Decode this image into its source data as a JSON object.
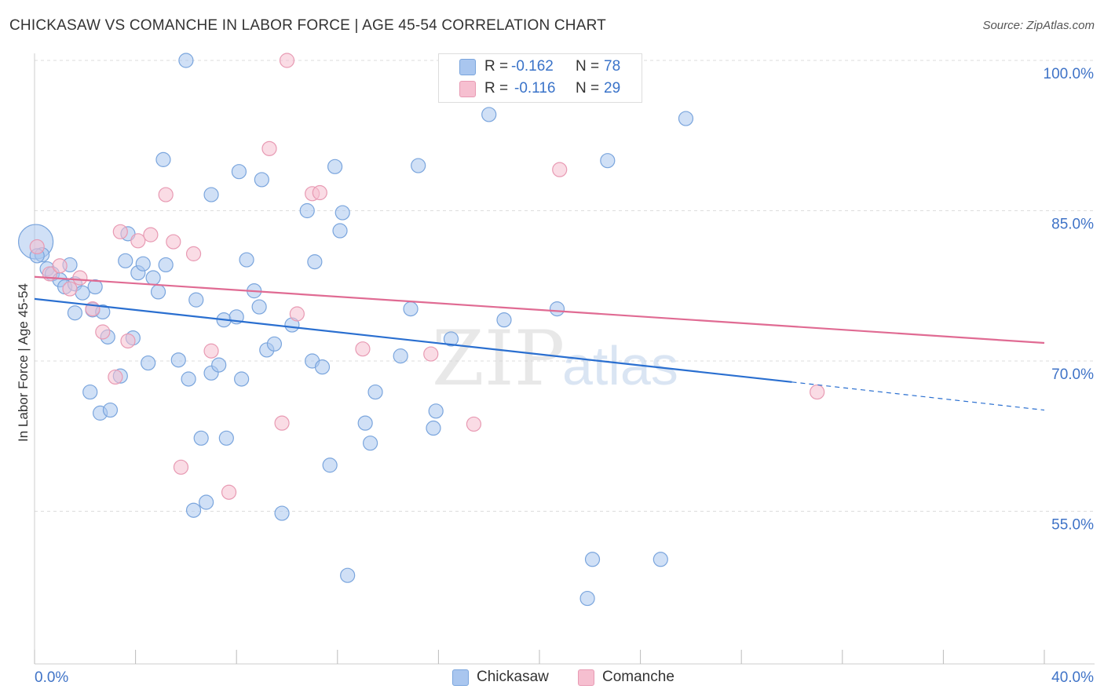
{
  "title": "CHICKASAW VS COMANCHE IN LABOR FORCE | AGE 45-54 CORRELATION CHART",
  "source": "Source: ZipAtlas.com",
  "watermark": {
    "zip": "ZIP",
    "atlas": "atlas"
  },
  "colors": {
    "blue_fill": "#a9c6ef",
    "blue_stroke": "#7aa5dd",
    "blue_line": "#2a6fd0",
    "pink_fill": "#f6bfd0",
    "pink_stroke": "#e89ab3",
    "pink_line": "#e06b93",
    "axis_text": "#3f73c7",
    "grid": "#dddddd"
  },
  "legend": [
    {
      "r_label": "R =",
      "r_value": "-0.162",
      "n_label": "N =",
      "n_value": "78"
    },
    {
      "r_label": "R =",
      "r_value": "-0.116",
      "n_label": "N =",
      "n_value": "29"
    }
  ],
  "chart_data": {
    "type": "scatter",
    "ylabel": "In Labor Force | Age 45-54",
    "xlim": [
      0,
      40
    ],
    "ylim": [
      40,
      100
    ],
    "x_tick_labels": [
      "0.0%",
      "40.0%"
    ],
    "y_tick_labels": [
      "100.0%",
      "85.0%",
      "70.0%",
      "55.0%"
    ],
    "y_tick_values": [
      100,
      85,
      70,
      55
    ],
    "y_label_offsets": [
      1.35,
      1.35,
      1.35,
      1.35
    ],
    "series": [
      {
        "name": "Chickasaw",
        "trend": {
          "x0": 0,
          "y0": 76.2,
          "x1": 30.0,
          "y1": 67.9,
          "dash_to_x": 40,
          "dash_to_y": 65.1
        },
        "points": [
          [
            0.05,
            81.9,
            "large"
          ],
          [
            0.3,
            80.6
          ],
          [
            0.5,
            79.2
          ],
          [
            0.7,
            78.7
          ],
          [
            1.0,
            78.1
          ],
          [
            1.2,
            77.4
          ],
          [
            1.4,
            79.6
          ],
          [
            1.6,
            77.7
          ],
          [
            1.9,
            76.8
          ],
          [
            1.6,
            74.8
          ],
          [
            2.3,
            75.1
          ],
          [
            2.7,
            74.9
          ],
          [
            2.9,
            72.4
          ],
          [
            3.4,
            68.5
          ],
          [
            2.2,
            66.9
          ],
          [
            2.6,
            64.8
          ],
          [
            3.0,
            65.1
          ],
          [
            3.7,
            82.7
          ],
          [
            3.6,
            80.0
          ],
          [
            4.1,
            78.8
          ],
          [
            4.3,
            79.7
          ],
          [
            4.7,
            78.3
          ],
          [
            4.5,
            69.8
          ],
          [
            3.9,
            72.3
          ],
          [
            4.9,
            76.9
          ],
          [
            5.2,
            79.6
          ],
          [
            5.1,
            90.1
          ],
          [
            5.7,
            70.1
          ],
          [
            6.0,
            100.0
          ],
          [
            6.1,
            68.2
          ],
          [
            6.4,
            76.1
          ],
          [
            6.6,
            62.3
          ],
          [
            6.8,
            55.9
          ],
          [
            6.3,
            55.1
          ],
          [
            7.0,
            86.6
          ],
          [
            7.0,
            68.8
          ],
          [
            7.3,
            69.6
          ],
          [
            7.5,
            74.1
          ],
          [
            7.6,
            62.3
          ],
          [
            8.0,
            74.4
          ],
          [
            8.1,
            88.9
          ],
          [
            8.2,
            68.2
          ],
          [
            8.4,
            80.1
          ],
          [
            8.7,
            77.0
          ],
          [
            8.9,
            75.4
          ],
          [
            9.0,
            88.1
          ],
          [
            9.2,
            71.1
          ],
          [
            9.5,
            71.7
          ],
          [
            9.8,
            54.8
          ],
          [
            10.2,
            73.6
          ],
          [
            10.8,
            85.0
          ],
          [
            11.0,
            70.0
          ],
          [
            11.1,
            79.9
          ],
          [
            11.4,
            69.4
          ],
          [
            11.7,
            59.6
          ],
          [
            11.9,
            89.4
          ],
          [
            12.1,
            83.0
          ],
          [
            12.2,
            84.8
          ],
          [
            12.4,
            48.6
          ],
          [
            13.1,
            63.8
          ],
          [
            13.3,
            61.8
          ],
          [
            13.5,
            66.9
          ],
          [
            14.5,
            70.5
          ],
          [
            14.9,
            75.2
          ],
          [
            15.2,
            89.5
          ],
          [
            15.8,
            63.3
          ],
          [
            15.9,
            65.0
          ],
          [
            16.5,
            72.2
          ],
          [
            18.0,
            94.6
          ],
          [
            18.6,
            74.1
          ],
          [
            20.7,
            75.2
          ],
          [
            21.9,
            46.3
          ],
          [
            22.1,
            50.2
          ],
          [
            22.7,
            90.0
          ],
          [
            24.8,
            50.2
          ],
          [
            25.8,
            94.2
          ],
          [
            0.1,
            80.5
          ],
          [
            2.4,
            77.4
          ]
        ]
      },
      {
        "name": "Comanche",
        "trend": {
          "x0": 0,
          "y0": 78.4,
          "x1": 40,
          "y1": 71.8
        },
        "points": [
          [
            0.1,
            81.4
          ],
          [
            0.6,
            78.7
          ],
          [
            1.0,
            79.5
          ],
          [
            1.4,
            77.2
          ],
          [
            1.8,
            78.3
          ],
          [
            2.3,
            75.2
          ],
          [
            2.7,
            72.9
          ],
          [
            3.2,
            68.4
          ],
          [
            3.4,
            82.9
          ],
          [
            3.7,
            72.0
          ],
          [
            4.1,
            82.0
          ],
          [
            4.6,
            82.6
          ],
          [
            5.2,
            86.6
          ],
          [
            5.5,
            81.9
          ],
          [
            5.8,
            59.4
          ],
          [
            6.3,
            80.7
          ],
          [
            7.0,
            71.0
          ],
          [
            7.7,
            56.9
          ],
          [
            9.3,
            91.2
          ],
          [
            9.8,
            63.8
          ],
          [
            10.0,
            100.0
          ],
          [
            10.4,
            74.7
          ],
          [
            11.0,
            86.7
          ],
          [
            11.3,
            86.8
          ],
          [
            13.0,
            71.2
          ],
          [
            15.7,
            70.7
          ],
          [
            17.4,
            63.7
          ],
          [
            20.8,
            89.1
          ],
          [
            31.0,
            66.9
          ]
        ]
      }
    ]
  }
}
